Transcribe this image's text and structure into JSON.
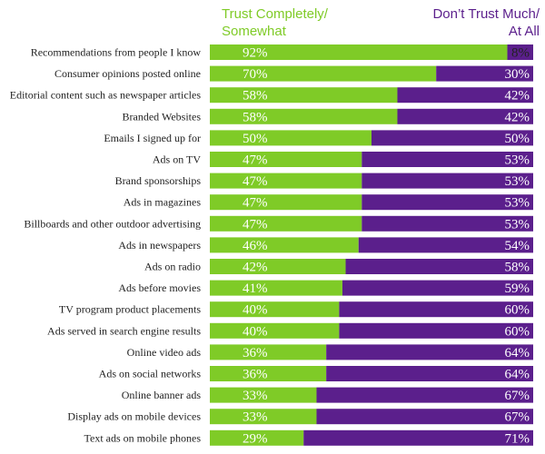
{
  "legend": {
    "trust_line1": "Trust Completely/",
    "trust_line2": "Somewhat",
    "distrust_line1": "Don’t Trust Much/",
    "distrust_line2": "At All"
  },
  "colors": {
    "trust": "#7fcb27",
    "distrust": "#5b1f8c"
  },
  "chart_data": {
    "type": "bar",
    "orientation": "horizontal-stacked-100",
    "categories": [
      "Recommendations from people I know",
      "Consumer opinions posted online",
      "Editorial content such as newspaper articles",
      "Branded Websites",
      "Emails I signed up for",
      "Ads on TV",
      "Brand sponsorships",
      "Ads in magazines",
      "Billboards and other outdoor advertising",
      "Ads in newspapers",
      "Ads on radio",
      "Ads before movies",
      "TV program product placements",
      "Ads served in search engine results",
      "Online video ads",
      "Ads on social networks",
      "Online banner ads",
      "Display ads on mobile devices",
      "Text ads on mobile phones"
    ],
    "series": [
      {
        "name": "Trust Completely/ Somewhat",
        "values": [
          92,
          70,
          58,
          58,
          50,
          47,
          47,
          47,
          47,
          46,
          42,
          41,
          40,
          40,
          36,
          36,
          33,
          33,
          29
        ],
        "labels": [
          "92%",
          "70%",
          "58%",
          "58%",
          "50%",
          "47%",
          "47%",
          "47%",
          "47%",
          "46%",
          "42%",
          "41%",
          "40%",
          "40%",
          "36%",
          "36%",
          "33%",
          "33%",
          "29%"
        ]
      },
      {
        "name": "Don’t Trust Much/ At All",
        "values": [
          8,
          30,
          42,
          42,
          50,
          53,
          53,
          53,
          53,
          54,
          58,
          59,
          60,
          60,
          64,
          64,
          67,
          67,
          71
        ],
        "labels": [
          "8%",
          "30%",
          "42%",
          "42%",
          "50%",
          "53%",
          "53%",
          "53%",
          "53%",
          "54%",
          "58%",
          "59%",
          "60%",
          "60%",
          "64%",
          "64%",
          "67%",
          "67%",
          "71%"
        ]
      }
    ],
    "xlim": [
      0,
      100
    ]
  }
}
